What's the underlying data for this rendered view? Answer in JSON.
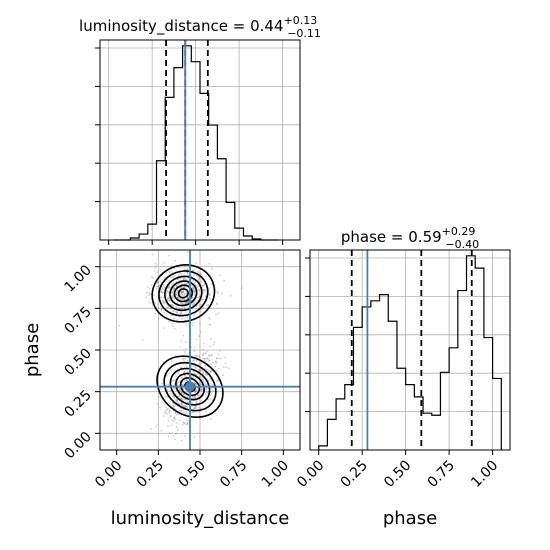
{
  "chart_data": [
    {
      "type": "histogram",
      "panel": "luminosity_distance marginal",
      "title": {
        "prefix": "luminosity_distance = ",
        "value": "0.44",
        "plus": "+0.13",
        "minus": "−0.11"
      },
      "bin_edges": [
        0.025,
        0.075,
        0.125,
        0.175,
        0.225,
        0.275,
        0.325,
        0.375,
        0.425,
        0.475,
        0.525,
        0.575,
        0.625,
        0.675,
        0.725,
        0.775,
        0.825,
        0.875,
        0.925,
        0.975
      ],
      "counts": [
        0,
        0,
        0.01,
        0.03,
        0.08,
        0.4,
        0.72,
        0.87,
        0.98,
        0.9,
        0.74,
        0.58,
        0.41,
        0.19,
        0.06,
        0.02,
        0.005,
        0,
        0
      ],
      "quantiles": [
        0.33,
        0.44,
        0.57
      ],
      "truth": 0.44,
      "xlim": [
        -0.05,
        1.1
      ],
      "grid": true
    },
    {
      "type": "histogram",
      "panel": "phase marginal",
      "title": {
        "prefix": "phase = ",
        "value": "0.59",
        "plus": "+0.29",
        "minus": "−0.40"
      },
      "bin_edges": [
        0.0,
        0.05,
        0.1,
        0.15,
        0.2,
        0.25,
        0.3,
        0.35,
        0.4,
        0.45,
        0.5,
        0.55,
        0.6,
        0.65,
        0.7,
        0.75,
        0.8,
        0.85,
        0.9,
        0.95,
        1.0,
        1.05
      ],
      "counts": [
        0.02,
        0.15,
        0.25,
        0.32,
        0.6,
        0.7,
        0.73,
        0.76,
        0.63,
        0.4,
        0.32,
        0.26,
        0.18,
        0.17,
        0.38,
        0.5,
        0.78,
        0.95,
        0.89,
        0.55,
        0.35
      ],
      "quantiles": [
        0.19,
        0.59,
        0.88
      ],
      "truth": 0.28,
      "xlim": [
        -0.05,
        1.1
      ],
      "grid": true
    },
    {
      "type": "2d-density",
      "panel": "phase vs luminosity_distance",
      "xlabel": "luminosity_distance",
      "ylabel": "phase",
      "xlim": [
        -0.1,
        1.1
      ],
      "ylim": [
        -0.1,
        1.1
      ],
      "xticks": [
        "0.00",
        "0.25",
        "0.50",
        "0.75",
        "1.00"
      ],
      "yticks": [
        "0.00",
        "0.25",
        "0.50",
        "0.75",
        "1.00"
      ],
      "truth": [
        0.44,
        0.28
      ],
      "modes": [
        {
          "center": [
            0.4,
            0.84
          ],
          "spread": [
            0.09,
            0.08
          ]
        },
        {
          "center": [
            0.44,
            0.28
          ],
          "spread": [
            0.08,
            0.1
          ]
        }
      ],
      "grid": true
    }
  ],
  "labels": {
    "xlabel_left": "luminosity_distance",
    "xlabel_right": "phase",
    "ylabel": "phase",
    "ticks": [
      "0.00",
      "0.25",
      "0.50",
      "0.75",
      "1.00"
    ]
  }
}
